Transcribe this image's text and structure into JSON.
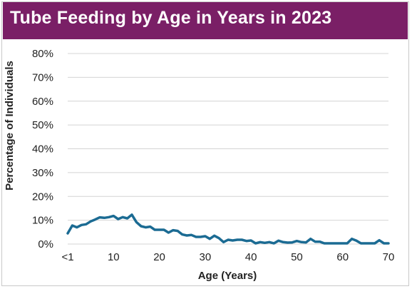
{
  "title": "Tube Feeding by Age in Years in 2023",
  "colors": {
    "title_bg": "#7a1f66",
    "line": "#1b6b93",
    "grid": "#d4d4d4"
  },
  "chart_data": {
    "type": "line",
    "title": "Tube Feeding by Age in Years in 2023",
    "xlabel": "Age (Years)",
    "ylabel": "Percentage of Individuals",
    "xlim": [
      0,
      70
    ],
    "ylim": [
      0,
      80
    ],
    "x_ticks": [
      0,
      10,
      20,
      30,
      40,
      50,
      60,
      70
    ],
    "x_tick_labels": [
      "<1",
      "10",
      "20",
      "30",
      "40",
      "50",
      "60",
      "70"
    ],
    "y_ticks": [
      0,
      10,
      20,
      30,
      40,
      50,
      60,
      70,
      80
    ],
    "y_tick_labels": [
      "0%",
      "10%",
      "20%",
      "30%",
      "40%",
      "50%",
      "60%",
      "70%",
      "80%"
    ],
    "grid": true,
    "series": [
      {
        "x": [
          0,
          1,
          2,
          3,
          4,
          5,
          6,
          7,
          8,
          9,
          10,
          11,
          12,
          13,
          14,
          15,
          16,
          17,
          18,
          19,
          20,
          21,
          22,
          23,
          24,
          25,
          26,
          27,
          28,
          29,
          30,
          31,
          32,
          33,
          34,
          35,
          36,
          37,
          38,
          39,
          40,
          41,
          42,
          43,
          44,
          45,
          46,
          47,
          48,
          49,
          50,
          51,
          52,
          53,
          54,
          55,
          56,
          57,
          58,
          59,
          60,
          61,
          62,
          63,
          64,
          65,
          66,
          67,
          68,
          69,
          70
        ],
        "y": [
          4.5,
          7.8,
          7,
          8,
          8.3,
          9.5,
          10.3,
          11.2,
          11,
          11.3,
          11.8,
          10.5,
          11.3,
          10.8,
          12.3,
          9.2,
          7.5,
          7,
          7.3,
          6,
          6,
          6,
          4.8,
          5.8,
          5.5,
          4,
          3.6,
          3.8,
          3,
          3,
          3.3,
          2.2,
          3.5,
          2.5,
          0.8,
          1.8,
          1.5,
          1.8,
          1.8,
          1.3,
          1.5,
          0.3,
          0.8,
          0.5,
          0.8,
          0.3,
          1.4,
          0.8,
          0.6,
          0.7,
          1.3,
          0.8,
          0.7,
          2.2,
          1,
          1,
          0.3,
          0.3,
          0.3,
          0.3,
          0.3,
          0.3,
          2.2,
          1.4,
          0.3,
          0.3,
          0.3,
          0.3,
          1.6,
          0.3,
          0.3
        ]
      }
    ]
  }
}
